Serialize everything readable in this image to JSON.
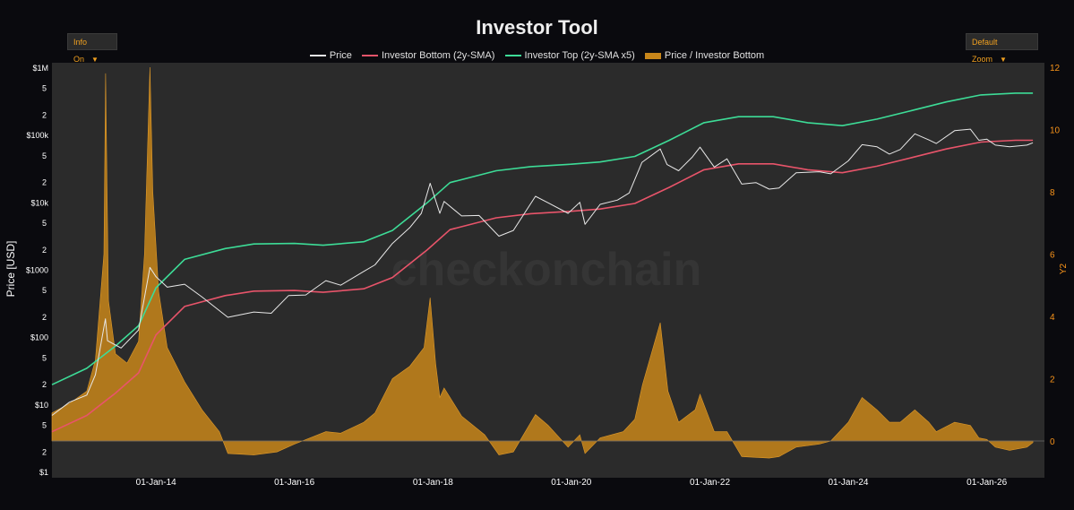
{
  "title": "Investor Tool",
  "controls": {
    "info_label": "Info On",
    "zoom_label": "Default Zoom"
  },
  "colors": {
    "background": "#0a0a0e",
    "plot_bg": "#2b2b2b",
    "price": "#e8e8e8",
    "bottom": "#e8546a",
    "top": "#3ddc97",
    "ratio": "#c8861a",
    "accent": "#f7931a"
  },
  "icons": {
    "dropdown": "chevron-down-icon"
  },
  "watermark": "checkonchain",
  "chart_data": {
    "type": "line",
    "title": "Investor Tool",
    "ylabel": "Price [USD]",
    "y2label": "Y2",
    "yscale": "log",
    "ylim": [
      1,
      1000000
    ],
    "y2lim": [
      0,
      12
    ],
    "xlim": [
      "2012-07-01",
      "2026-11-01"
    ],
    "x_ticks": [
      "01-Jan-14",
      "01-Jan-16",
      "01-Jan-18",
      "01-Jan-20",
      "01-Jan-22",
      "01-Jan-24",
      "01-Jan-26"
    ],
    "y_ticks": [
      {
        "v": 1,
        "t": "$1"
      },
      {
        "v": 2,
        "t": "2"
      },
      {
        "v": 5,
        "t": "5"
      },
      {
        "v": 10,
        "t": "$10"
      },
      {
        "v": 20,
        "t": "2"
      },
      {
        "v": 50,
        "t": "5"
      },
      {
        "v": 100,
        "t": "$100"
      },
      {
        "v": 200,
        "t": "2"
      },
      {
        "v": 500,
        "t": "5"
      },
      {
        "v": 1000,
        "t": "$1000"
      },
      {
        "v": 2000,
        "t": "2"
      },
      {
        "v": 5000,
        "t": "5"
      },
      {
        "v": 10000,
        "t": "$10k"
      },
      {
        "v": 20000,
        "t": "2"
      },
      {
        "v": 50000,
        "t": "5"
      },
      {
        "v": 100000,
        "t": "$100k"
      },
      {
        "v": 200000,
        "t": "2"
      },
      {
        "v": 500000,
        "t": "5"
      },
      {
        "v": 1000000,
        "t": "$1M"
      },
      {
        "v": 2000000,
        "t": "2"
      }
    ],
    "y2_ticks": [
      "0",
      "2",
      "4",
      "6",
      "8",
      "10",
      "12"
    ],
    "legend_position": "top-center",
    "grid": false,
    "series": [
      {
        "name": "Price",
        "kind": "line",
        "axis": "y",
        "points": [
          [
            "2012-07-01",
            7
          ],
          [
            "2012-10-01",
            11
          ],
          [
            "2013-01-01",
            14
          ],
          [
            "2013-02-15",
            28
          ],
          [
            "2013-04-09",
            190
          ],
          [
            "2013-04-20",
            90
          ],
          [
            "2013-07-01",
            70
          ],
          [
            "2013-10-01",
            130
          ],
          [
            "2013-11-30",
            1100
          ],
          [
            "2014-01-01",
            800
          ],
          [
            "2014-03-01",
            560
          ],
          [
            "2014-06-01",
            620
          ],
          [
            "2014-09-01",
            400
          ],
          [
            "2015-01-15",
            200
          ],
          [
            "2015-06-01",
            240
          ],
          [
            "2015-09-01",
            230
          ],
          [
            "2015-12-01",
            420
          ],
          [
            "2016-03-01",
            430
          ],
          [
            "2016-06-15",
            700
          ],
          [
            "2016-09-01",
            600
          ],
          [
            "2017-01-01",
            960
          ],
          [
            "2017-03-01",
            1200
          ],
          [
            "2017-06-01",
            2500
          ],
          [
            "2017-09-01",
            4300
          ],
          [
            "2017-11-01",
            7000
          ],
          [
            "2017-12-17",
            19500
          ],
          [
            "2018-02-06",
            7000
          ],
          [
            "2018-03-01",
            10500
          ],
          [
            "2018-06-01",
            6400
          ],
          [
            "2018-09-01",
            6500
          ],
          [
            "2018-12-15",
            3200
          ],
          [
            "2019-03-01",
            3900
          ],
          [
            "2019-06-26",
            12500
          ],
          [
            "2019-09-01",
            10000
          ],
          [
            "2019-12-15",
            7000
          ],
          [
            "2020-02-15",
            10200
          ],
          [
            "2020-03-13",
            4800
          ],
          [
            "2020-06-01",
            9500
          ],
          [
            "2020-09-01",
            11000
          ],
          [
            "2020-11-01",
            14000
          ],
          [
            "2021-01-08",
            40000
          ],
          [
            "2021-04-14",
            63000
          ],
          [
            "2021-05-20",
            37000
          ],
          [
            "2021-07-20",
            30000
          ],
          [
            "2021-10-01",
            48000
          ],
          [
            "2021-11-10",
            67000
          ],
          [
            "2022-01-24",
            34000
          ],
          [
            "2022-04-01",
            45000
          ],
          [
            "2022-06-18",
            19000
          ],
          [
            "2022-09-01",
            20000
          ],
          [
            "2022-11-10",
            16000
          ],
          [
            "2023-01-01",
            16600
          ],
          [
            "2023-04-01",
            28000
          ],
          [
            "2023-08-01",
            29000
          ],
          [
            "2023-10-01",
            27000
          ],
          [
            "2024-01-01",
            42000
          ],
          [
            "2024-03-14",
            73000
          ],
          [
            "2024-06-01",
            68000
          ],
          [
            "2024-08-05",
            53000
          ],
          [
            "2024-10-01",
            62000
          ],
          [
            "2024-12-17",
            106000
          ],
          [
            "2025-03-01",
            86000
          ],
          [
            "2025-04-09",
            76000
          ],
          [
            "2025-07-15",
            118000
          ],
          [
            "2025-10-06",
            124000
          ],
          [
            "2025-11-20",
            85000
          ],
          [
            "2026-01-01",
            88000
          ],
          [
            "2026-02-15",
            72000
          ],
          [
            "2026-05-01",
            68000
          ],
          [
            "2026-08-01",
            72000
          ],
          [
            "2026-09-01",
            78000
          ]
        ]
      },
      {
        "name": "Investor Bottom (2y-SMA)",
        "kind": "line",
        "axis": "y",
        "points": [
          [
            "2012-07-01",
            4
          ],
          [
            "2013-01-01",
            7
          ],
          [
            "2013-06-01",
            15
          ],
          [
            "2013-10-01",
            30
          ],
          [
            "2014-01-01",
            110
          ],
          [
            "2014-06-01",
            290
          ],
          [
            "2015-01-01",
            420
          ],
          [
            "2015-06-01",
            490
          ],
          [
            "2016-01-01",
            500
          ],
          [
            "2016-06-01",
            470
          ],
          [
            "2017-01-01",
            530
          ],
          [
            "2017-06-01",
            780
          ],
          [
            "2017-12-01",
            2000
          ],
          [
            "2018-04-01",
            4000
          ],
          [
            "2018-12-01",
            6000
          ],
          [
            "2019-06-01",
            6900
          ],
          [
            "2020-01-01",
            7500
          ],
          [
            "2020-06-01",
            8100
          ],
          [
            "2020-12-01",
            9800
          ],
          [
            "2021-06-01",
            17000
          ],
          [
            "2021-12-01",
            31000
          ],
          [
            "2022-06-01",
            38000
          ],
          [
            "2022-12-01",
            38000
          ],
          [
            "2023-06-01",
            31000
          ],
          [
            "2023-12-01",
            28000
          ],
          [
            "2024-06-01",
            35000
          ],
          [
            "2024-12-01",
            47000
          ],
          [
            "2025-06-01",
            63000
          ],
          [
            "2025-12-01",
            80000
          ],
          [
            "2026-06-01",
            85000
          ],
          [
            "2026-09-01",
            85000
          ]
        ]
      },
      {
        "name": "Investor Top (2y-SMA x5)",
        "kind": "line",
        "axis": "y",
        "points": [
          [
            "2012-07-01",
            20
          ],
          [
            "2013-01-01",
            35
          ],
          [
            "2013-06-01",
            75
          ],
          [
            "2013-10-01",
            150
          ],
          [
            "2014-01-01",
            550
          ],
          [
            "2014-06-01",
            1450
          ],
          [
            "2015-01-01",
            2100
          ],
          [
            "2015-06-01",
            2450
          ],
          [
            "2016-01-01",
            2500
          ],
          [
            "2016-06-01",
            2350
          ],
          [
            "2017-01-01",
            2650
          ],
          [
            "2017-06-01",
            3900
          ],
          [
            "2017-12-01",
            10000
          ],
          [
            "2018-04-01",
            20000
          ],
          [
            "2018-12-01",
            30000
          ],
          [
            "2019-06-01",
            34500
          ],
          [
            "2020-01-01",
            37500
          ],
          [
            "2020-06-01",
            40500
          ],
          [
            "2020-12-01",
            49000
          ],
          [
            "2021-06-01",
            85000
          ],
          [
            "2021-12-01",
            155000
          ],
          [
            "2022-06-01",
            190000
          ],
          [
            "2022-12-01",
            190000
          ],
          [
            "2023-06-01",
            155000
          ],
          [
            "2023-12-01",
            140000
          ],
          [
            "2024-06-01",
            175000
          ],
          [
            "2024-12-01",
            235000
          ],
          [
            "2025-06-01",
            315000
          ],
          [
            "2025-12-01",
            400000
          ],
          [
            "2026-06-01",
            425000
          ],
          [
            "2026-09-01",
            425000
          ]
        ]
      },
      {
        "name": "Price / Investor Bottom",
        "kind": "area",
        "axis": "y2",
        "points": [
          [
            "2012-07-01",
            0.9
          ],
          [
            "2012-10-01",
            1.2
          ],
          [
            "2013-01-01",
            1.6
          ],
          [
            "2013-02-15",
            2.6
          ],
          [
            "2013-04-01",
            6.0
          ],
          [
            "2013-04-10",
            11.8
          ],
          [
            "2013-04-25",
            4.5
          ],
          [
            "2013-06-01",
            2.8
          ],
          [
            "2013-08-01",
            2.5
          ],
          [
            "2013-10-01",
            3.2
          ],
          [
            "2013-11-01",
            6.0
          ],
          [
            "2013-11-30",
            12.0
          ],
          [
            "2013-12-15",
            8.0
          ],
          [
            "2014-01-15",
            4.8
          ],
          [
            "2014-03-01",
            3.0
          ],
          [
            "2014-06-01",
            1.9
          ],
          [
            "2014-09-01",
            1.0
          ],
          [
            "2014-12-01",
            0.3
          ],
          [
            "2015-01-15",
            -0.4
          ],
          [
            "2015-06-01",
            -0.45
          ],
          [
            "2015-10-01",
            -0.35
          ],
          [
            "2016-01-01",
            -0.1
          ],
          [
            "2016-06-15",
            0.3
          ],
          [
            "2016-09-01",
            0.25
          ],
          [
            "2017-01-01",
            0.6
          ],
          [
            "2017-03-01",
            0.9
          ],
          [
            "2017-06-01",
            2.0
          ],
          [
            "2017-09-01",
            2.4
          ],
          [
            "2017-11-15",
            3.0
          ],
          [
            "2017-12-17",
            4.6
          ],
          [
            "2018-01-15",
            2.5
          ],
          [
            "2018-02-06",
            1.4
          ],
          [
            "2018-03-01",
            1.7
          ],
          [
            "2018-06-01",
            0.8
          ],
          [
            "2018-10-01",
            0.2
          ],
          [
            "2018-12-15",
            -0.45
          ],
          [
            "2019-03-01",
            -0.35
          ],
          [
            "2019-06-26",
            0.85
          ],
          [
            "2019-09-01",
            0.5
          ],
          [
            "2019-12-15",
            -0.2
          ],
          [
            "2020-02-15",
            0.2
          ],
          [
            "2020-03-13",
            -0.4
          ],
          [
            "2020-06-01",
            0.1
          ],
          [
            "2020-10-01",
            0.3
          ],
          [
            "2020-12-01",
            0.7
          ],
          [
            "2021-01-10",
            1.8
          ],
          [
            "2021-04-14",
            3.8
          ],
          [
            "2021-05-25",
            1.6
          ],
          [
            "2021-07-20",
            0.6
          ],
          [
            "2021-10-15",
            1.0
          ],
          [
            "2021-11-10",
            1.5
          ],
          [
            "2022-01-24",
            0.3
          ],
          [
            "2022-04-01",
            0.3
          ],
          [
            "2022-06-18",
            -0.5
          ],
          [
            "2022-11-10",
            -0.55
          ],
          [
            "2023-01-01",
            -0.5
          ],
          [
            "2023-04-01",
            -0.2
          ],
          [
            "2023-08-01",
            -0.1
          ],
          [
            "2023-10-01",
            0.0
          ],
          [
            "2024-01-01",
            0.6
          ],
          [
            "2024-03-14",
            1.4
          ],
          [
            "2024-06-01",
            1.0
          ],
          [
            "2024-08-05",
            0.6
          ],
          [
            "2024-10-01",
            0.6
          ],
          [
            "2024-12-17",
            1.0
          ],
          [
            "2025-03-01",
            0.6
          ],
          [
            "2025-04-09",
            0.3
          ],
          [
            "2025-07-15",
            0.6
          ],
          [
            "2025-10-06",
            0.5
          ],
          [
            "2025-11-20",
            0.1
          ],
          [
            "2026-01-01",
            0.05
          ],
          [
            "2026-02-15",
            -0.2
          ],
          [
            "2026-05-01",
            -0.3
          ],
          [
            "2026-08-01",
            -0.2
          ],
          [
            "2026-09-01",
            -0.05
          ]
        ]
      }
    ]
  }
}
